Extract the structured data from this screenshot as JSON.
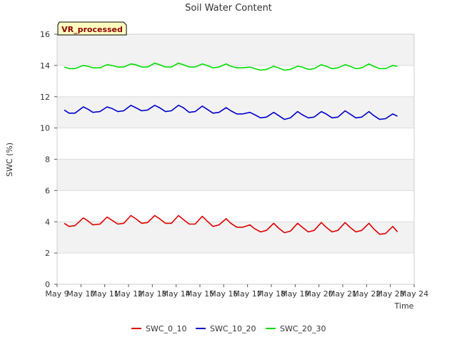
{
  "chart_data": {
    "type": "line",
    "title": "Soil Water Content",
    "xlabel": "Time",
    "ylabel": "SWC (%)",
    "badge": "VR_processed",
    "xlim": [
      9,
      24
    ],
    "ylim": [
      0,
      16
    ],
    "yticks": [
      0,
      2,
      4,
      6,
      8,
      10,
      12,
      14,
      16
    ],
    "xticks": [
      {
        "value": 9,
        "label": "May 9"
      },
      {
        "value": 10,
        "label": "May 10"
      },
      {
        "value": 11,
        "label": "May 11"
      },
      {
        "value": 12,
        "label": "May 12"
      },
      {
        "value": 13,
        "label": "May 13"
      },
      {
        "value": 14,
        "label": "May 14"
      },
      {
        "value": 15,
        "label": "May 15"
      },
      {
        "value": 16,
        "label": "May 16"
      },
      {
        "value": 17,
        "label": "May 17"
      },
      {
        "value": 18,
        "label": "May 18"
      },
      {
        "value": 19,
        "label": "May 19"
      },
      {
        "value": 20,
        "label": "May 20"
      },
      {
        "value": 21,
        "label": "May 21"
      },
      {
        "value": 22,
        "label": "May 22"
      },
      {
        "value": 23,
        "label": "May 23"
      },
      {
        "value": 24,
        "label": "May 24"
      }
    ],
    "series": [
      {
        "name": "SWC_0_10",
        "color": "#dd0000",
        "x": [
          9.3,
          9.5,
          9.75,
          10.1,
          10.3,
          10.5,
          10.8,
          11.1,
          11.3,
          11.55,
          11.8,
          12.1,
          12.3,
          12.55,
          12.8,
          13.1,
          13.3,
          13.55,
          13.8,
          14.1,
          14.3,
          14.55,
          14.8,
          15.1,
          15.3,
          15.55,
          15.8,
          16.1,
          16.3,
          16.55,
          16.8,
          17.1,
          17.3,
          17.55,
          17.8,
          18.1,
          18.3,
          18.55,
          18.8,
          19.1,
          19.3,
          19.55,
          19.8,
          20.1,
          20.3,
          20.55,
          20.8,
          21.1,
          21.3,
          21.55,
          21.8,
          22.1,
          22.3,
          22.55,
          22.8,
          23.1,
          23.3
        ],
        "y": [
          3.9,
          3.7,
          3.75,
          4.25,
          4.05,
          3.8,
          3.85,
          4.3,
          4.1,
          3.85,
          3.9,
          4.4,
          4.2,
          3.9,
          3.95,
          4.4,
          4.2,
          3.9,
          3.9,
          4.4,
          4.15,
          3.85,
          3.85,
          4.35,
          4.05,
          3.7,
          3.8,
          4.2,
          3.9,
          3.65,
          3.65,
          3.8,
          3.55,
          3.35,
          3.45,
          3.9,
          3.6,
          3.3,
          3.4,
          3.9,
          3.65,
          3.35,
          3.45,
          3.95,
          3.65,
          3.35,
          3.45,
          3.95,
          3.65,
          3.35,
          3.45,
          3.9,
          3.55,
          3.2,
          3.25,
          3.7,
          3.35
        ]
      },
      {
        "name": "SWC_10_20",
        "color": "#0000cc",
        "x": [
          9.3,
          9.5,
          9.75,
          10.1,
          10.3,
          10.5,
          10.8,
          11.1,
          11.3,
          11.55,
          11.8,
          12.1,
          12.3,
          12.55,
          12.8,
          13.1,
          13.3,
          13.55,
          13.8,
          14.1,
          14.3,
          14.55,
          14.8,
          15.1,
          15.3,
          15.55,
          15.8,
          16.1,
          16.3,
          16.55,
          16.8,
          17.1,
          17.3,
          17.55,
          17.8,
          18.1,
          18.3,
          18.55,
          18.8,
          19.1,
          19.3,
          19.55,
          19.8,
          20.1,
          20.3,
          20.55,
          20.8,
          21.1,
          21.3,
          21.55,
          21.8,
          22.1,
          22.3,
          22.55,
          22.8,
          23.1,
          23.3
        ],
        "y": [
          11.15,
          10.95,
          10.95,
          11.35,
          11.2,
          11.0,
          11.05,
          11.35,
          11.25,
          11.05,
          11.1,
          11.45,
          11.3,
          11.1,
          11.15,
          11.45,
          11.3,
          11.05,
          11.1,
          11.45,
          11.3,
          11.0,
          11.05,
          11.4,
          11.2,
          10.95,
          11.0,
          11.3,
          11.1,
          10.9,
          10.9,
          11.0,
          10.85,
          10.65,
          10.7,
          11.0,
          10.8,
          10.55,
          10.65,
          11.05,
          10.85,
          10.65,
          10.7,
          11.05,
          10.9,
          10.65,
          10.7,
          11.1,
          10.9,
          10.65,
          10.7,
          11.05,
          10.8,
          10.55,
          10.6,
          10.9,
          10.75
        ]
      },
      {
        "name": "SWC_20_30",
        "color": "#00dd00",
        "x": [
          9.3,
          9.5,
          9.75,
          10.1,
          10.3,
          10.5,
          10.8,
          11.1,
          11.3,
          11.55,
          11.8,
          12.1,
          12.3,
          12.55,
          12.8,
          13.1,
          13.3,
          13.55,
          13.8,
          14.1,
          14.3,
          14.55,
          14.8,
          15.1,
          15.3,
          15.55,
          15.8,
          16.1,
          16.3,
          16.55,
          16.8,
          17.1,
          17.3,
          17.55,
          17.8,
          18.1,
          18.3,
          18.55,
          18.8,
          19.1,
          19.3,
          19.55,
          19.8,
          20.1,
          20.3,
          20.55,
          20.8,
          21.1,
          21.3,
          21.55,
          21.8,
          22.1,
          22.3,
          22.55,
          22.8,
          23.1,
          23.3
        ],
        "y": [
          13.9,
          13.8,
          13.8,
          14.0,
          13.95,
          13.85,
          13.85,
          14.05,
          14.0,
          13.9,
          13.9,
          14.1,
          14.05,
          13.9,
          13.9,
          14.15,
          14.05,
          13.9,
          13.9,
          14.15,
          14.05,
          13.9,
          13.9,
          14.1,
          14.0,
          13.85,
          13.9,
          14.1,
          13.95,
          13.85,
          13.85,
          13.9,
          13.8,
          13.7,
          13.75,
          13.95,
          13.85,
          13.7,
          13.75,
          13.95,
          13.9,
          13.75,
          13.8,
          14.05,
          13.95,
          13.8,
          13.85,
          14.05,
          13.95,
          13.8,
          13.85,
          14.1,
          13.95,
          13.8,
          13.8,
          14.0,
          13.95
        ]
      }
    ],
    "legend_position": "bottom-center"
  }
}
